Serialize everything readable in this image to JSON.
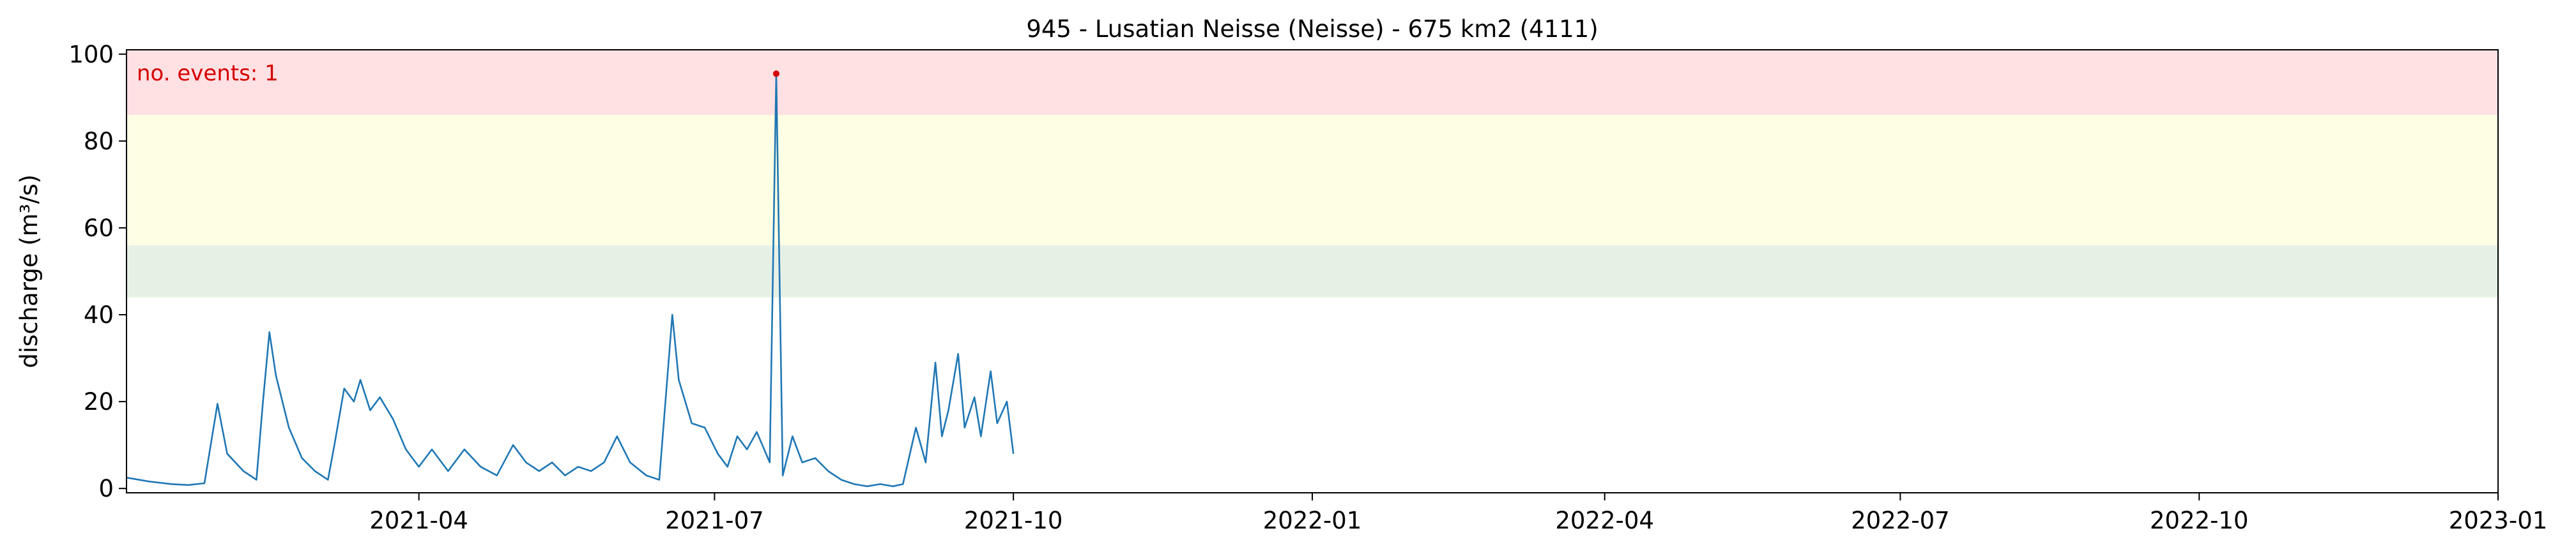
{
  "chart_data": {
    "type": "line",
    "title": "945 - Lusatian Neisse (Neisse) - 675 km2 (4111)",
    "xlabel": "",
    "ylabel": "discharge (m³/s)",
    "xlim": [
      "2021-01-01",
      "2023-01-01"
    ],
    "ylim": [
      -1,
      101
    ],
    "x_ticks": [
      "2021-04",
      "2021-07",
      "2021-10",
      "2022-01",
      "2022-04",
      "2022-07",
      "2022-10",
      "2023-01"
    ],
    "y_ticks": [
      0,
      20,
      40,
      60,
      80,
      100
    ],
    "grid": false,
    "legend": "none",
    "bands": [
      {
        "name": "red",
        "from": 86,
        "to": 101,
        "color": "#ffe0e3"
      },
      {
        "name": "yellow",
        "from": 56,
        "to": 86,
        "color": "#fefee4"
      },
      {
        "name": "green",
        "from": 44,
        "to": 56,
        "color": "#e6f1e6"
      }
    ],
    "annotation": {
      "text": "no. events: 1",
      "color": "#d50000"
    },
    "event_point": {
      "x": "2021-07-20",
      "y": 95.5,
      "color": "#d50000"
    },
    "series": [
      {
        "color": "#1f77b4",
        "points": [
          [
            "2021-01-01",
            2.5
          ],
          [
            "2021-01-08",
            1.6
          ],
          [
            "2021-01-15",
            1.0
          ],
          [
            "2021-01-20",
            0.8
          ],
          [
            "2021-01-25",
            1.2
          ],
          [
            "2021-01-29",
            19.5
          ],
          [
            "2021-02-01",
            8.0
          ],
          [
            "2021-02-06",
            4.0
          ],
          [
            "2021-02-10",
            2.0
          ],
          [
            "2021-02-12",
            20.0
          ],
          [
            "2021-02-14",
            36.0
          ],
          [
            "2021-02-16",
            26.0
          ],
          [
            "2021-02-20",
            14.0
          ],
          [
            "2021-02-24",
            7.0
          ],
          [
            "2021-02-28",
            4.0
          ],
          [
            "2021-03-04",
            2.0
          ],
          [
            "2021-03-06",
            10.0
          ],
          [
            "2021-03-09",
            23.0
          ],
          [
            "2021-03-12",
            20.0
          ],
          [
            "2021-03-14",
            25.0
          ],
          [
            "2021-03-17",
            18.0
          ],
          [
            "2021-03-20",
            21.0
          ],
          [
            "2021-03-24",
            16.0
          ],
          [
            "2021-03-28",
            9.0
          ],
          [
            "2021-04-01",
            5.0
          ],
          [
            "2021-04-05",
            9.0
          ],
          [
            "2021-04-10",
            4.0
          ],
          [
            "2021-04-15",
            9.0
          ],
          [
            "2021-04-20",
            5.0
          ],
          [
            "2021-04-25",
            3.0
          ],
          [
            "2021-04-30",
            10.0
          ],
          [
            "2021-05-04",
            6.0
          ],
          [
            "2021-05-08",
            4.0
          ],
          [
            "2021-05-12",
            6.0
          ],
          [
            "2021-05-16",
            3.0
          ],
          [
            "2021-05-20",
            5.0
          ],
          [
            "2021-05-24",
            4.0
          ],
          [
            "2021-05-28",
            6.0
          ],
          [
            "2021-06-01",
            12.0
          ],
          [
            "2021-06-05",
            6.0
          ],
          [
            "2021-06-10",
            3.0
          ],
          [
            "2021-06-14",
            2.0
          ],
          [
            "2021-06-18",
            40.0
          ],
          [
            "2021-06-20",
            25.0
          ],
          [
            "2021-06-24",
            15.0
          ],
          [
            "2021-06-28",
            14.0
          ],
          [
            "2021-07-02",
            8.0
          ],
          [
            "2021-07-05",
            5.0
          ],
          [
            "2021-07-08",
            12.0
          ],
          [
            "2021-07-11",
            9.0
          ],
          [
            "2021-07-14",
            13.0
          ],
          [
            "2021-07-18",
            6.0
          ],
          [
            "2021-07-22",
            3.0
          ],
          [
            "2021-07-25",
            12.0
          ],
          [
            "2021-07-28",
            6.0
          ],
          [
            "2021-08-01",
            7.0
          ],
          [
            "2021-08-05",
            4.0
          ],
          [
            "2021-08-09",
            2.0
          ],
          [
            "2021-08-13",
            1.0
          ],
          [
            "2021-08-17",
            0.5
          ],
          [
            "2021-08-21",
            1.0
          ],
          [
            "2021-08-25",
            0.5
          ],
          [
            "2021-08-28",
            1.0
          ],
          [
            "2021-09-01",
            14.0
          ],
          [
            "2021-09-04",
            6.0
          ],
          [
            "2021-09-07",
            29.0
          ],
          [
            "2021-09-09",
            12.0
          ],
          [
            "2021-09-11",
            18.0
          ],
          [
            "2021-09-14",
            31.0
          ],
          [
            "2021-09-16",
            14.0
          ],
          [
            "2021-09-19",
            21.0
          ],
          [
            "2021-09-21",
            12.0
          ],
          [
            "2021-09-24",
            27.0
          ],
          [
            "2021-09-26",
            15.0
          ],
          [
            "2021-09-29",
            20.0
          ],
          [
            "2021-10-01",
            8.0
          ],
          [
            "2021-07-20",
            95.5
          ]
        ]
      }
    ]
  }
}
